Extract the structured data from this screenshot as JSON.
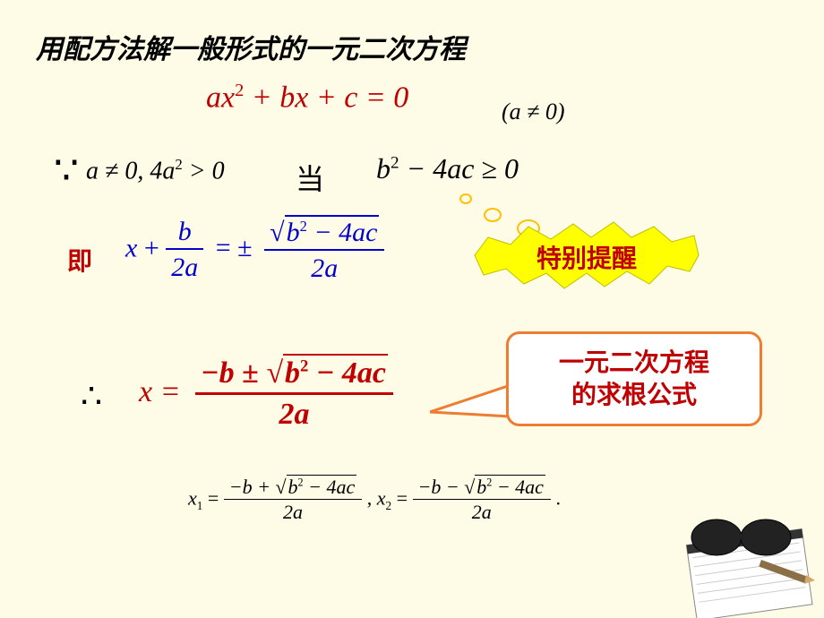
{
  "title": "用配方法解一般形式的一元二次方程",
  "equation": {
    "main_html": "ax<span class='sup'>2</span> + bx + c = 0",
    "condition": "(a ≠ 0)",
    "color": "#c00000"
  },
  "because": {
    "symbol": "∵",
    "text_html": "a ≠ 0, 4a<span class='sup'>2</span> > 0",
    "fontsize": 28
  },
  "dang": "当",
  "discriminant_html": "b<span class='sup'>2</span> − 4ac ≥ 0",
  "ji": "即",
  "step_eq": {
    "x_label": "x",
    "plus": "+",
    "frac1_num": "b",
    "frac1_den": "2a",
    "equals": "= ±",
    "frac2_num_html": "b<span class='sup' style='font-size:0.55em'>2</span> − 4ac",
    "frac2_den": "2a",
    "color": "#0000cc"
  },
  "star_callout": {
    "text": "特别提醒",
    "fill": "#ffff00",
    "stroke": "#bfbf00",
    "text_color": "#c00000"
  },
  "therefore": "∴",
  "final": {
    "x_label": "x =",
    "num_html": "−b ± √<span class='sqrt-sym'>b<span class='sup' style='font-size:0.55em'>2</span> − 4ac</span>",
    "den": "2a",
    "color": "#c00000"
  },
  "callout_box": {
    "line1": "一元二次方程",
    "line2": "的求根公式",
    "border_color": "#ed7d31",
    "bg_color": "#ffffff",
    "text_color": "#c00000"
  },
  "roots": {
    "x1_label": "x",
    "x1_sub": "1",
    "num1_html": "−b + √<span class='sqrt-sym' style='border-top:1.5px solid #000'>b<span class='sup' style='font-size:0.55em'>2</span> − 4ac</span>",
    "den1": "2a",
    "x2_label": "x",
    "x2_sub": "2",
    "num2_html": "−b − √<span class='sqrt-sym' style='border-top:1.5px solid #000'>b<span class='sup' style='font-size:0.55em'>2</span> − 4ac</span>",
    "den2": "2a",
    "period": "."
  },
  "colors": {
    "bg": "#fefbe6",
    "red": "#c00000",
    "blue": "#0000cc",
    "orange": "#ed7d31",
    "yellow": "#ffff00",
    "circle": "#ffc000"
  }
}
